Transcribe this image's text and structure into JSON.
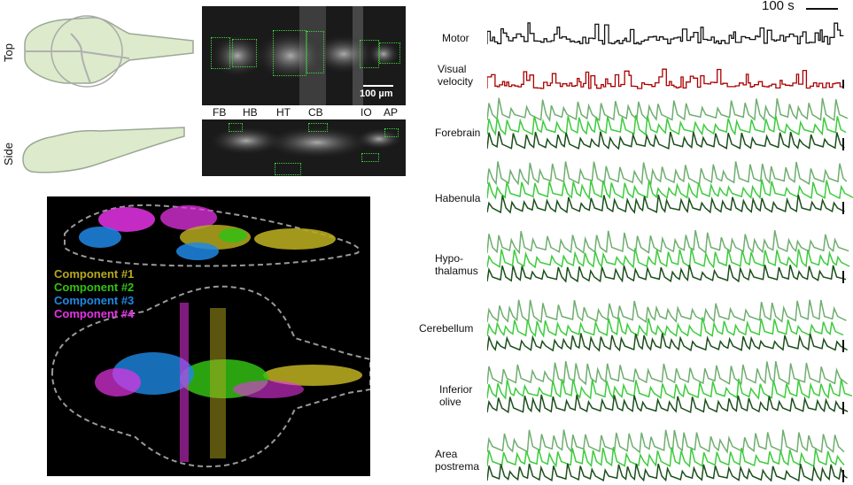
{
  "orientation": {
    "top": "Top",
    "side": "Side"
  },
  "micrograph": {
    "scalebar": "100 µm",
    "region_abbrevs": [
      "FB",
      "HB",
      "HT",
      "CB",
      "IO",
      "AP"
    ]
  },
  "components": {
    "legend": [
      "Component #1",
      "Component #2",
      "Component #3",
      "Component #4"
    ],
    "colors": [
      "#b5a91f",
      "#33c014",
      "#1e88e5",
      "#e633e6"
    ]
  },
  "traces": {
    "time_scalebar": "100 s",
    "rows": [
      {
        "label": "Motor",
        "color_key": "motor"
      },
      {
        "label": "Visual\nvelocity",
        "color_key": "visual"
      },
      {
        "label": "Forebrain",
        "color_key": "region"
      },
      {
        "label": "Habenula",
        "color_key": "region"
      },
      {
        "label": "Hypo-\nthalamus",
        "color_key": "region"
      },
      {
        "label": "Cerebellum",
        "color_key": "region"
      },
      {
        "label": "Inferior\nolive",
        "color_key": "region"
      },
      {
        "label": "Area\npostrema",
        "color_key": "region"
      }
    ],
    "colors": {
      "motor": "#111111",
      "visual": "#aa0000",
      "light": "#6fae6f",
      "mid": "#3dcc3d",
      "dark": "#1c4f1c"
    }
  }
}
